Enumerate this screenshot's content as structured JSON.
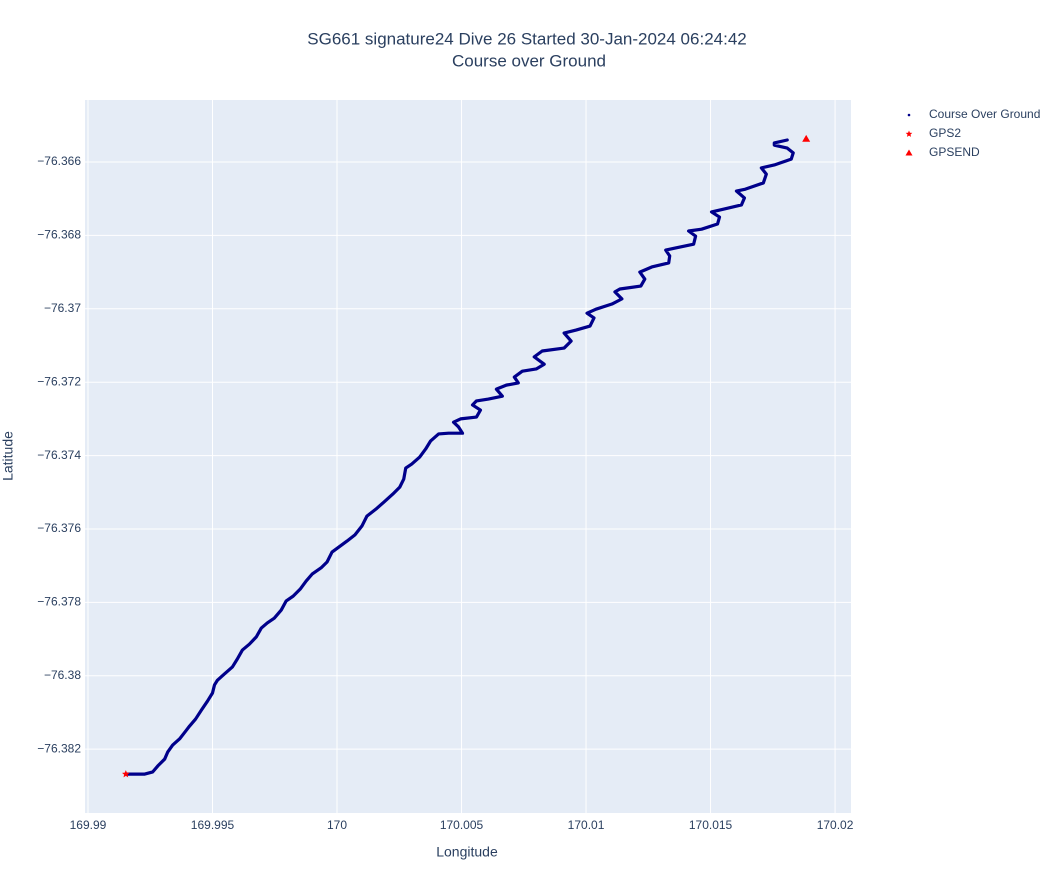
{
  "chart_data": {
    "type": "scatter",
    "title": "SG661 signature24 Dive 26 Started 30-Jan-2024 06:24:42",
    "subtitle": "Course over Ground",
    "x_label": "Longitude",
    "y_label": "Latitude",
    "xlim": [
      169.98988,
      170.02064
    ],
    "ylim": [
      -76.38374,
      -76.36431
    ],
    "xticks": [
      169.99,
      169.995,
      170,
      170.005,
      170.01,
      170.015,
      170.02
    ],
    "yticks": [
      {
        "value": -76.366,
        "label": "−76.366"
      },
      {
        "value": -76.368,
        "label": "−76.368"
      },
      {
        "value": -76.37,
        "label": "−76.37"
      },
      {
        "value": -76.372,
        "label": "−76.372"
      },
      {
        "value": -76.374,
        "label": "−76.374"
      },
      {
        "value": -76.376,
        "label": "−76.376"
      },
      {
        "value": -76.378,
        "label": "−76.378"
      },
      {
        "value": -76.38,
        "label": "−76.38"
      },
      {
        "value": -76.382,
        "label": "−76.382"
      }
    ],
    "grid": true,
    "legend": "right",
    "series": [
      {
        "name": "Course Over Ground",
        "color": "#00008b",
        "marker": "circle",
        "x": [
          169.99156,
          169.99188,
          169.99228,
          169.9926,
          169.9928,
          169.99308,
          169.9932,
          169.9934,
          169.99368,
          169.99392,
          169.99408,
          169.99432,
          169.99456,
          169.9948,
          169.995,
          169.99508,
          169.9952,
          169.99548,
          169.9958,
          169.996,
          169.9962,
          169.99648,
          169.99676,
          169.99696,
          169.9972,
          169.99748,
          169.99776,
          169.99796,
          169.99824,
          169.99852,
          169.99876,
          169.999,
          169.99936,
          169.9996,
          169.9998,
          170.00008,
          170.0004,
          170.00072,
          170.001,
          170.0012,
          170.00156,
          170.00188,
          170.00224,
          170.00252,
          170.00268,
          170.00276,
          170.003,
          170.00332,
          170.00356,
          170.00376,
          170.00408,
          170.00448,
          170.00504,
          170.00488,
          170.00468,
          170.00496,
          170.0056,
          170.00576,
          170.00544,
          170.0056,
          170.00608,
          170.00664,
          170.0064,
          170.0068,
          170.00728,
          170.00712,
          170.00744,
          170.008,
          170.00832,
          170.00792,
          170.00824,
          170.00912,
          170.0094,
          170.00912,
          170.0096,
          170.01016,
          170.01032,
          170.01004,
          170.0104,
          170.01104,
          170.01144,
          170.01116,
          170.01136,
          170.0122,
          170.01236,
          170.01216,
          170.01264,
          170.01332,
          170.01336,
          170.0132,
          170.0136,
          170.01432,
          170.0144,
          170.01412,
          170.01464,
          170.01528,
          170.01536,
          170.01504,
          170.01556,
          170.01624,
          170.01636,
          170.01604,
          170.0164,
          170.01712,
          170.01724,
          170.01704,
          170.01756,
          170.01824,
          170.01832,
          170.01808,
          170.01756,
          170.01756,
          170.01808
        ],
        "y": [
          -76.38268,
          -76.38268,
          -76.38268,
          -76.38262,
          -76.38246,
          -76.38227,
          -76.38208,
          -76.38189,
          -76.38172,
          -76.38151,
          -76.38137,
          -76.38118,
          -76.38093,
          -76.38069,
          -76.38047,
          -76.38025,
          -76.38012,
          -76.37995,
          -76.37976,
          -76.37954,
          -76.3793,
          -76.37914,
          -76.37894,
          -76.3787,
          -76.37856,
          -76.37843,
          -76.37821,
          -76.37796,
          -76.37783,
          -76.37764,
          -76.37742,
          -76.37723,
          -76.37706,
          -76.3769,
          -76.37663,
          -76.37649,
          -76.37633,
          -76.37616,
          -76.37592,
          -76.37565,
          -76.37546,
          -76.37527,
          -76.37505,
          -76.37486,
          -76.37464,
          -76.37434,
          -76.37423,
          -76.37404,
          -76.37382,
          -76.3736,
          -76.37341,
          -76.37339,
          -76.37339,
          -76.37322,
          -76.37309,
          -76.373,
          -76.37295,
          -76.37276,
          -76.37262,
          -76.37251,
          -76.37246,
          -76.37238,
          -76.37219,
          -76.37208,
          -76.37202,
          -76.37186,
          -76.3717,
          -76.37164,
          -76.37151,
          -76.37131,
          -76.37115,
          -76.37107,
          -76.37088,
          -76.37066,
          -76.37058,
          -76.37047,
          -76.37025,
          -76.37012,
          -76.37001,
          -76.36987,
          -76.36973,
          -76.36954,
          -76.36946,
          -76.36938,
          -76.36919,
          -76.369,
          -76.36886,
          -76.36875,
          -76.36856,
          -76.3684,
          -76.36834,
          -76.36824,
          -76.36802,
          -76.36788,
          -76.36783,
          -76.36769,
          -76.3675,
          -76.36736,
          -76.36728,
          -76.36717,
          -76.36698,
          -76.36679,
          -76.36674,
          -76.36657,
          -76.36633,
          -76.36616,
          -76.36608,
          -76.36592,
          -76.36575,
          -76.36562,
          -76.36554,
          -76.36548,
          -76.3654
        ]
      },
      {
        "name": "GPS2",
        "color": "#ff0000",
        "marker": "star",
        "x": [
          169.99152
        ],
        "y": [
          -76.38268
        ]
      },
      {
        "name": "GPSEND",
        "color": "#ff0000",
        "marker": "triangle-up",
        "x": [
          170.01884
        ],
        "y": [
          -76.36537
        ]
      }
    ]
  }
}
